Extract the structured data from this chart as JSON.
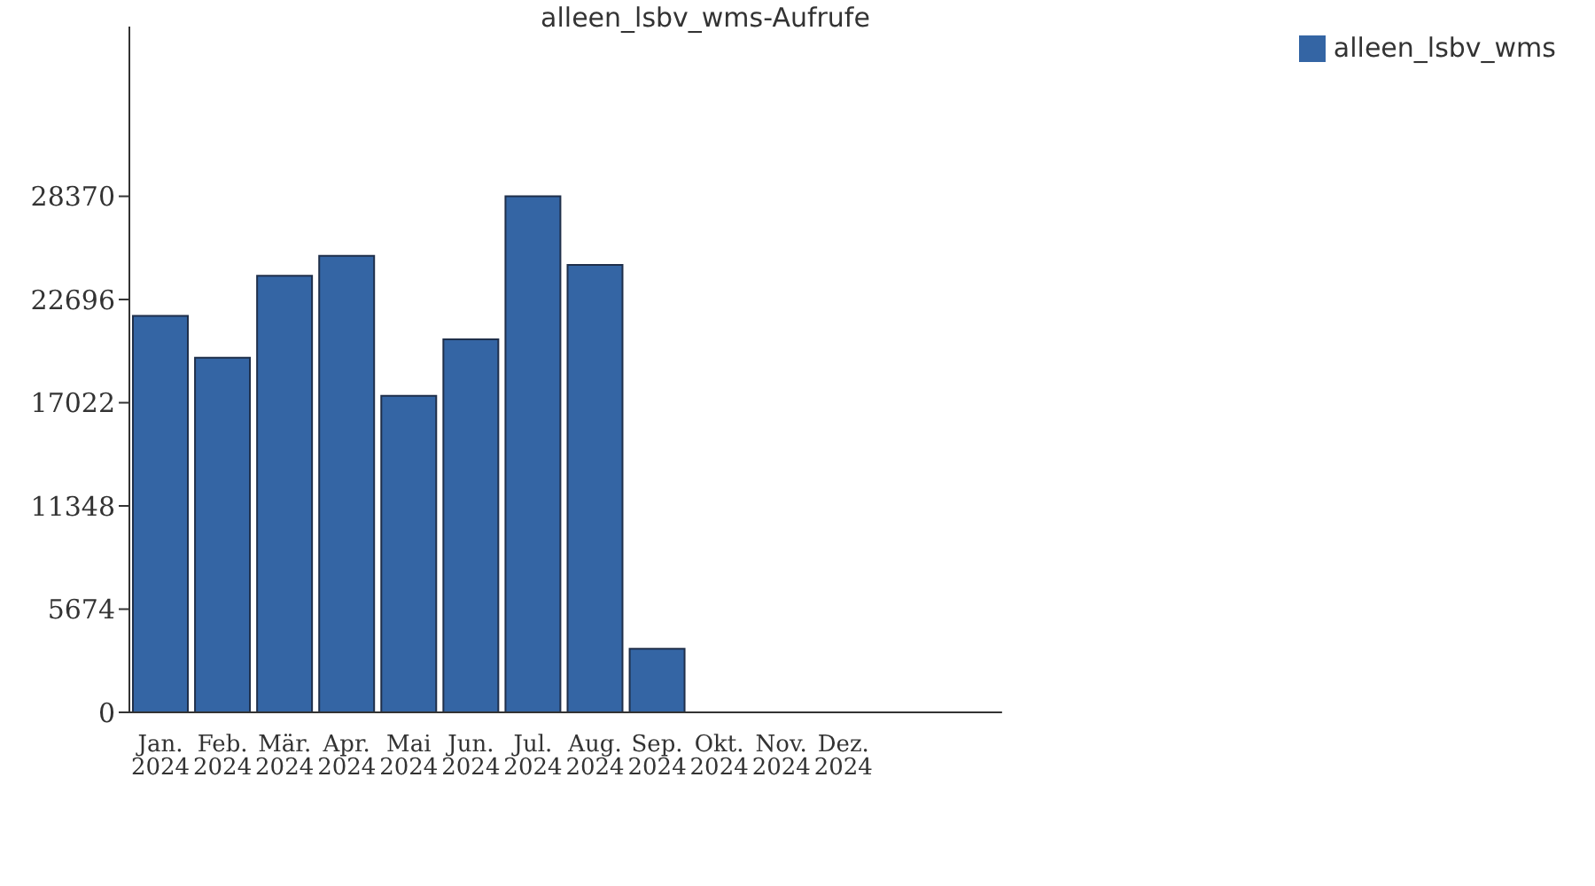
{
  "chart_data": {
    "type": "bar",
    "title": "alleen_lsbv_wms-Aufrufe",
    "categories": [
      "Jan. 2024",
      "Feb. 2024",
      "Mär. 2024",
      "Apr. 2024",
      "Mai 2024",
      "Jun. 2024",
      "Jul. 2024",
      "Aug. 2024",
      "Sep. 2024",
      "Okt. 2024",
      "Nov. 2024",
      "Dez. 2024"
    ],
    "series": [
      {
        "name": "alleen_lsbv_wms",
        "color": "#3465a4",
        "values": [
          21800,
          19500,
          24000,
          25100,
          17400,
          20500,
          28370,
          24600,
          3500,
          0,
          0,
          0
        ]
      }
    ],
    "ylim": [
      0,
      37700
    ],
    "yticks": [
      0,
      5674,
      11348,
      17022,
      22696,
      28370
    ],
    "grid": false,
    "legend": "top right"
  }
}
